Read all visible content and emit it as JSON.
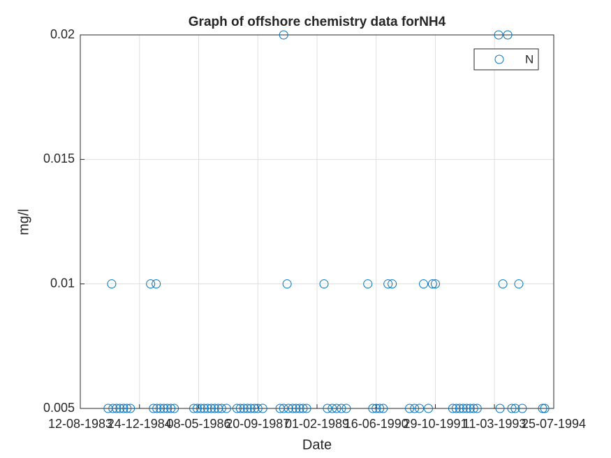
{
  "chart_data": {
    "type": "scatter",
    "title": "Graph of offshore chemistry data forNH4",
    "x_label": "Date",
    "y_label": "mg/l",
    "series": [
      {
        "name": "N",
        "color": "#0072bd",
        "x": [
          "1984-04-03",
          "1984-05-03",
          "1984-05-14",
          "1984-06-13",
          "1984-07-12",
          "1984-08-11",
          "1984-09-09",
          "1984-10-08",
          "1985-03-28",
          "1985-04-21",
          "1985-05-14",
          "1985-05-20",
          "1985-06-18",
          "1985-07-18",
          "1985-08-16",
          "1985-09-15",
          "1985-10-14",
          "1986-03-28",
          "1986-04-26",
          "1986-05-26",
          "1986-06-24",
          "1986-07-23",
          "1986-08-22",
          "1986-09-20",
          "1986-10-20",
          "1986-11-18",
          "1986-12-29",
          "1987-03-28",
          "1987-04-26",
          "1987-05-25",
          "1987-06-24",
          "1987-07-23",
          "1987-08-22",
          "1987-09-20",
          "1987-10-31",
          "1988-03-26",
          "1988-04-25",
          "1988-04-25",
          "1988-05-24",
          "1988-06-05",
          "1988-07-10",
          "1988-08-08",
          "1988-09-07",
          "1988-10-06",
          "1988-11-05",
          "1989-04-01",
          "1989-04-30",
          "1989-06-10",
          "1989-07-16",
          "1989-08-26",
          "1989-10-06",
          "1990-04-06",
          "1990-05-18",
          "1990-06-16",
          "1990-07-15",
          "1990-08-14",
          "1990-09-24",
          "1990-10-29",
          "1991-03-25",
          "1991-05-06",
          "1991-06-16",
          "1991-07-21",
          "1991-08-31",
          "1991-10-05",
          "1991-10-29",
          "1992-03-24",
          "1992-04-22",
          "1992-05-22",
          "1992-06-20",
          "1992-07-20",
          "1992-08-18",
          "1992-09-16",
          "1992-10-16",
          "1993-04-15",
          "1993-04-27",
          "1993-05-21",
          "1993-07-01",
          "1993-08-05",
          "1993-09-03",
          "1993-10-03",
          "1993-11-01",
          "1994-04-22",
          "1994-05-10"
        ],
        "values": [
          0.005,
          0.01,
          0.005,
          0.005,
          0.005,
          0.005,
          0.005,
          0.005,
          0.01,
          0.005,
          0.01,
          0.005,
          0.005,
          0.005,
          0.005,
          0.005,
          0.005,
          0.005,
          0.005,
          0.005,
          0.005,
          0.005,
          0.005,
          0.005,
          0.005,
          0.005,
          0.005,
          0.005,
          0.005,
          0.005,
          0.005,
          0.005,
          0.005,
          0.005,
          0.005,
          0.005,
          0.02,
          0.005,
          0.01,
          0.005,
          0.005,
          0.005,
          0.005,
          0.005,
          0.005,
          0.01,
          0.005,
          0.005,
          0.005,
          0.005,
          0.005,
          0.01,
          0.005,
          0.005,
          0.005,
          0.005,
          0.01,
          0.01,
          0.005,
          0.005,
          0.005,
          0.01,
          0.005,
          0.01,
          0.01,
          0.005,
          0.005,
          0.005,
          0.005,
          0.005,
          0.005,
          0.005,
          0.005,
          0.02,
          0.005,
          0.01,
          0.02,
          0.005,
          0.005,
          0.01,
          0.005,
          0.005,
          0.005
        ]
      }
    ],
    "xlim": [
      "1983-08-12",
      "1994-07-25"
    ],
    "xticks": [
      {
        "value": "1983-08-12",
        "label": "12-08-1983"
      },
      {
        "value": "1984-12-24",
        "label": "24-12-1984"
      },
      {
        "value": "1986-05-08",
        "label": "08-05-1986"
      },
      {
        "value": "1987-09-20",
        "label": "20-09-1987"
      },
      {
        "value": "1989-02-01",
        "label": "01-02-1989"
      },
      {
        "value": "1990-06-16",
        "label": "16-06-1990"
      },
      {
        "value": "1991-10-29",
        "label": "29-10-1991"
      },
      {
        "value": "1993-03-11",
        "label": "11-03-1993"
      },
      {
        "value": "1994-07-25",
        "label": "25-07-1994"
      }
    ],
    "ylim": [
      0.005,
      0.02
    ],
    "yticks": [
      0.005,
      0.01,
      0.015,
      0.02
    ],
    "grid": true,
    "legend_position": "northeast"
  }
}
